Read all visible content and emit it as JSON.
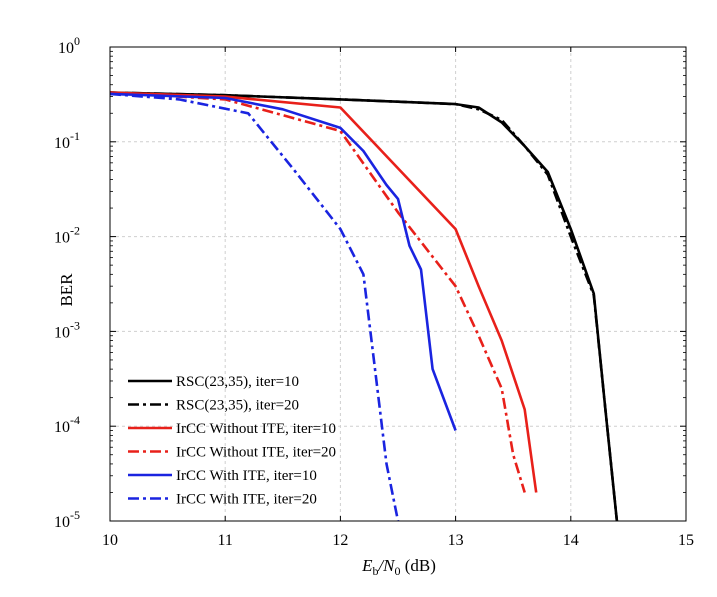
{
  "chart_data": {
    "type": "line",
    "title": "",
    "xlabel": {
      "main": "E",
      "sub1": "b",
      "mid": "/N",
      "sub2": "0",
      "tail": " (dB)"
    },
    "ylabel": "BER",
    "xlim": [
      10,
      15
    ],
    "ylim_exp": [
      -5,
      0
    ],
    "yscale": "log",
    "x_ticks": [
      "10",
      "11",
      "12",
      "13",
      "14",
      "15"
    ],
    "y_ticks": [
      {
        "base": "10",
        "exp": "0"
      },
      {
        "base": "10",
        "exp": "-1"
      },
      {
        "base": "10",
        "exp": "-2"
      },
      {
        "base": "10",
        "exp": "-3"
      },
      {
        "base": "10",
        "exp": "-4"
      },
      {
        "base": "10",
        "exp": "-5"
      }
    ],
    "grid": true,
    "legend_position": "bottom-left",
    "series": [
      {
        "name": "RSC(23,35), iter=10",
        "color": "#000000",
        "style": "solid",
        "x": [
          10,
          11,
          12,
          12.5,
          13,
          13.2,
          13.4,
          13.6,
          13.8,
          14,
          14.2,
          14.3,
          14.4
        ],
        "y": [
          0.33,
          0.31,
          0.28,
          0.265,
          0.25,
          0.23,
          0.16,
          0.09,
          0.048,
          0.012,
          0.0025,
          0.00015,
          1e-05
        ]
      },
      {
        "name": "RSC(23,35), iter=20",
        "color": "#000000",
        "style": "dashdot",
        "x": [
          10,
          11,
          12,
          12.5,
          13,
          13.2,
          13.4,
          13.6,
          13.8,
          14,
          14.2,
          14.3,
          14.4
        ],
        "y": [
          0.33,
          0.31,
          0.28,
          0.265,
          0.25,
          0.22,
          0.17,
          0.09,
          0.045,
          0.01,
          0.0024,
          0.00015,
          1e-05
        ]
      },
      {
        "name": "IrCC Without ITE, iter=10",
        "color": "#e8201a",
        "style": "solid",
        "x": [
          10,
          11,
          12,
          13,
          13.2,
          13.4,
          13.6,
          13.7
        ],
        "y": [
          0.33,
          0.3,
          0.23,
          0.012,
          0.003,
          0.0008,
          0.00015,
          2e-05
        ]
      },
      {
        "name": "IrCC Without ITE, iter=20",
        "color": "#e8201a",
        "style": "dashdot",
        "x": [
          10,
          11,
          12,
          12.5,
          13,
          13.2,
          13.4,
          13.5,
          13.6
        ],
        "y": [
          0.33,
          0.28,
          0.13,
          0.018,
          0.003,
          0.0009,
          0.00025,
          5e-05,
          2e-05
        ]
      },
      {
        "name": "IrCC With ITE, iter=10",
        "color": "#1a24e0",
        "style": "solid",
        "x": [
          10,
          11,
          11.5,
          12,
          12.2,
          12.4,
          12.5,
          12.6,
          12.7,
          12.8,
          13
        ],
        "y": [
          0.32,
          0.29,
          0.22,
          0.14,
          0.08,
          0.035,
          0.025,
          0.008,
          0.0045,
          0.0004,
          9e-05
        ]
      },
      {
        "name": "IrCC With ITE, iter=20",
        "color": "#1a24e0",
        "style": "dashdot",
        "x": [
          10,
          10.6,
          11.2,
          11.6,
          12,
          12.2,
          12.3,
          12.4,
          12.5
        ],
        "y": [
          0.32,
          0.28,
          0.2,
          0.05,
          0.012,
          0.004,
          0.0004,
          4e-05,
          1e-05
        ]
      }
    ]
  }
}
